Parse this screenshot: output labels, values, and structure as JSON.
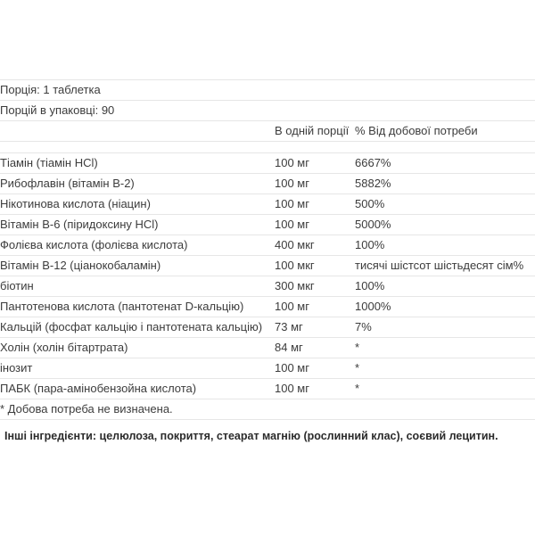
{
  "serving_info": {
    "serving_size": "Порція: 1 таблетка",
    "servings_per_container": "Порцій в упаковці: 90"
  },
  "table": {
    "columns": {
      "amount": "В одній порції",
      "daily_value": "% Від добової потреби"
    },
    "rows": [
      {
        "name": "Тіамін (тіамін HCl)",
        "amount": "100 мг",
        "dv": "6667%"
      },
      {
        "name": "Рибофлавін (вітамін В-2)",
        "amount": "100 мг",
        "dv": "5882%"
      },
      {
        "name": "Нікотинова кислота (ніацин)",
        "amount": "100 мг",
        "dv": "500%"
      },
      {
        "name": "Вітамін В-6 (піридоксину HCl)",
        "amount": "100 мг",
        "dv": "5000%"
      },
      {
        "name": "Фолієва кислота (фолієва кислота)",
        "amount": "400 мкг",
        "dv": "100%"
      },
      {
        "name": "Вітамін В-12 (ціанокобаламін)",
        "amount": "100 мкг",
        "dv": "тисячі шістсот шістьдесят сім%"
      },
      {
        "name": "біотин",
        "amount": "300 мкг",
        "dv": "100%"
      },
      {
        "name": "Пантотенова кислота (пантотенат D-кальцію)",
        "amount": "100 мг",
        "dv": "1000%"
      },
      {
        "name": "Кальцій (фосфат кальцію і пантотената кальцію)",
        "amount": "73 мг",
        "dv": "7%"
      },
      {
        "name": "Холін (холін бітартрата)",
        "amount": "84 мг",
        "dv": "*"
      },
      {
        "name": "інозит",
        "amount": "100 мг",
        "dv": "*"
      },
      {
        "name": "ПАБК (пара-амінобензойна кислота)",
        "amount": "100 мг",
        "dv": "*"
      }
    ],
    "footnote": "* Добова потреба не визначена."
  },
  "other_ingredients": "Інші інгредієнти: целюлоза, покриття, стеарат магнію (рослинний клас), соєвий лецитин.",
  "colors": {
    "text": "#3c3c3c",
    "bold_text": "#2b2b2b",
    "border": "#e6e6e6",
    "background": "#ffffff"
  }
}
